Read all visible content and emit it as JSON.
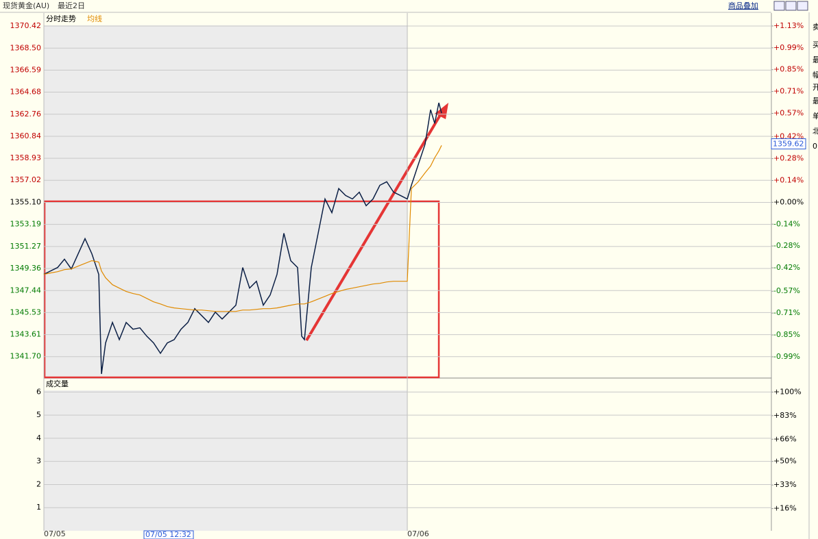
{
  "header": {
    "instrument": "现货黄金(AU)",
    "range": "最近2日",
    "overlay_button": "商品叠加"
  },
  "side_panel": [
    "卖",
    "买",
    "最",
    "幅",
    "开",
    "最",
    "单",
    "北",
    "0"
  ],
  "chart_data": [
    {
      "type": "line",
      "x": [
        0,
        10,
        20,
        30,
        40,
        50,
        60,
        70,
        80,
        84,
        90,
        100,
        110,
        120,
        130,
        140,
        150,
        160,
        170,
        180,
        190,
        200,
        210,
        220,
        230,
        240,
        250,
        260,
        270,
        280,
        290,
        300,
        310,
        320,
        330,
        340,
        350,
        360,
        370,
        376,
        380,
        390,
        400,
        410,
        420,
        430,
        440,
        450,
        460,
        470,
        480,
        490,
        500,
        510,
        520,
        530,
        536,
        546,
        556,
        564,
        570,
        576,
        580
      ],
      "xlim": [
        0,
        1061
      ],
      "xticks": [
        {
          "value": 0,
          "label": "07/05"
        },
        {
          "value": 530,
          "label": "07/06"
        }
      ],
      "cursor": {
        "value": 146,
        "label": "07/05 12:32"
      },
      "series": [
        {
          "name": "分时走势",
          "color": "#0b1f45",
          "values": [
            1348.85,
            1349.15,
            1349.44,
            1350.16,
            1349.32,
            1350.63,
            1351.95,
            1350.63,
            1348.85,
            1340.2,
            1342.89,
            1344.67,
            1343.18,
            1344.67,
            1344.08,
            1344.2,
            1343.48,
            1342.89,
            1341.99,
            1342.89,
            1343.18,
            1344.08,
            1344.67,
            1345.87,
            1345.27,
            1344.67,
            1345.57,
            1344.97,
            1345.57,
            1346.17,
            1349.44,
            1347.66,
            1348.25,
            1346.17,
            1347.06,
            1348.85,
            1352.42,
            1350.04,
            1349.44,
            1343.48,
            1343.18,
            1349.44,
            1352.42,
            1355.4,
            1354.21,
            1356.3,
            1355.7,
            1355.4,
            1355.99,
            1354.81,
            1355.4,
            1356.59,
            1356.89,
            1355.99,
            1355.7,
            1355.4,
            1356.59,
            1358.38,
            1360.17,
            1363.15,
            1361.96,
            1363.75,
            1362.85
          ]
        },
        {
          "name": "均线",
          "color": "#e08a00",
          "values": [
            1348.85,
            1348.97,
            1349.08,
            1349.26,
            1349.32,
            1349.56,
            1349.8,
            1350.04,
            1349.92,
            1349.14,
            1348.55,
            1347.95,
            1347.65,
            1347.36,
            1347.18,
            1347.06,
            1346.76,
            1346.46,
            1346.28,
            1346.05,
            1345.93,
            1345.87,
            1345.81,
            1345.75,
            1345.75,
            1345.69,
            1345.63,
            1345.63,
            1345.63,
            1345.63,
            1345.75,
            1345.75,
            1345.81,
            1345.87,
            1345.87,
            1345.93,
            1346.05,
            1346.17,
            1346.28,
            1346.28,
            1346.28,
            1346.46,
            1346.7,
            1346.94,
            1347.18,
            1347.36,
            1347.54,
            1347.65,
            1347.77,
            1347.89,
            1348.01,
            1348.07,
            1348.19,
            1348.25,
            1348.25,
            1348.25,
            1356.3,
            1356.89,
            1357.67,
            1358.26,
            1358.98,
            1359.57,
            1360.05
          ]
        }
      ],
      "ylim": [
        1339.9,
        1370.48
      ],
      "yticks": [
        1370.42,
        {
          "value": 1368.5,
          "label": "1368.50"
        },
        1366.59,
        1364.68,
        1362.76,
        1360.84,
        1358.93,
        1357.02,
        {
          "value": 1355.1,
          "label": "1355.10"
        },
        1353.19,
        1351.27,
        1349.36,
        1347.44,
        1345.53,
        1343.61,
        {
          "value": 1341.7,
          "label": "1341.70"
        }
      ],
      "y2lim": [
        -1.122,
        1.134
      ],
      "y2ticks": [
        {
          "value": 1.13,
          "label": "+1.13%"
        },
        {
          "value": 0.99,
          "label": "+0.99%"
        },
        {
          "value": 0.85,
          "label": "+0.85%"
        },
        {
          "value": 0.71,
          "label": "+0.71%"
        },
        {
          "value": 0.57,
          "label": "+0.57%"
        },
        {
          "value": 0.42,
          "label": "+0.42%"
        },
        {
          "value": 0.28,
          "label": "+0.28%"
        },
        {
          "value": 0.14,
          "label": "+0.14%"
        },
        {
          "value": 0,
          "label": "+0.00%"
        },
        {
          "value": -0.14,
          "label": "-0.14%"
        },
        {
          "value": -0.28,
          "label": "-0.28%"
        },
        {
          "value": -0.42,
          "label": "-0.42%"
        },
        {
          "value": -0.57,
          "label": "-0.57%"
        },
        {
          "value": -0.71,
          "label": "-0.71%"
        },
        {
          "value": -0.85,
          "label": "-0.85%"
        },
        {
          "value": -0.99,
          "label": "-0.99%"
        }
      ],
      "base_price": 1355.1,
      "last_price": 1359.62,
      "up_color": "#c00000",
      "down_color": "#007a00",
      "grid": true
    },
    {
      "type": "bar",
      "title": "成交量",
      "ylim": [
        0,
        6.07
      ],
      "yticks": [
        6,
        5,
        4,
        3,
        2,
        1
      ],
      "y2lim": [
        0,
        101.2
      ],
      "y2ticks": [
        {
          "value": 100,
          "label": "+100%"
        },
        {
          "value": 83,
          "label": "+83%"
        },
        {
          "value": 66,
          "label": "+66%"
        },
        {
          "value": 50,
          "label": "+50%"
        },
        {
          "value": 33,
          "label": "+33%"
        },
        {
          "value": 16,
          "label": "+16%"
        }
      ],
      "grid": true
    }
  ]
}
